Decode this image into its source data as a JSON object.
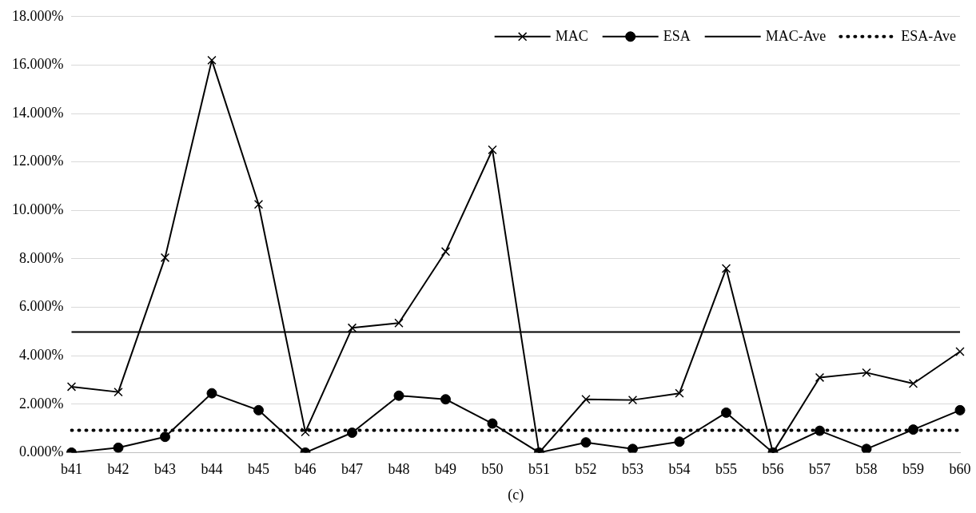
{
  "chart_data": {
    "type": "line",
    "categories": [
      "b41",
      "b42",
      "b43",
      "b44",
      "b45",
      "b46",
      "b47",
      "b48",
      "b49",
      "b50",
      "b51",
      "b52",
      "b53",
      "b54",
      "b55",
      "b56",
      "b57",
      "b58",
      "b59",
      "b60"
    ],
    "series": [
      {
        "name": "MAC",
        "color": "#000000",
        "marker": "cross",
        "line_style": "solid",
        "values": [
          2.72,
          2.5,
          8.05,
          16.2,
          10.25,
          0.85,
          5.15,
          5.35,
          8.3,
          12.5,
          0,
          2.2,
          2.17,
          2.45,
          7.6,
          0,
          3.1,
          3.3,
          2.85,
          4.17
        ]
      },
      {
        "name": "ESA",
        "color": "#000000",
        "marker": "circle",
        "line_style": "solid",
        "values": [
          0,
          0.2,
          0.65,
          2.45,
          1.75,
          0,
          0.82,
          2.35,
          2.2,
          1.2,
          0,
          0.42,
          0.15,
          0.45,
          1.65,
          0,
          0.9,
          0.15,
          0.95,
          1.75
        ]
      },
      {
        "name": "MAC-Ave",
        "color": "#000000",
        "marker": "none",
        "line_style": "solid",
        "values": [
          4.98,
          4.98,
          4.98,
          4.98,
          4.98,
          4.98,
          4.98,
          4.98,
          4.98,
          4.98,
          4.98,
          4.98,
          4.98,
          4.98,
          4.98,
          4.98,
          4.98,
          4.98,
          4.98,
          4.98
        ]
      },
      {
        "name": "ESA-Ave",
        "color": "#000000",
        "marker": "none",
        "line_style": "dotted",
        "values": [
          0.92,
          0.92,
          0.92,
          0.92,
          0.92,
          0.92,
          0.92,
          0.92,
          0.92,
          0.92,
          0.92,
          0.92,
          0.92,
          0.92,
          0.92,
          0.92,
          0.92,
          0.92,
          0.92,
          0.92
        ]
      }
    ],
    "ylim": [
      0,
      18
    ],
    "yticks": [
      {
        "value": 0,
        "label": "0.000%"
      },
      {
        "value": 2,
        "label": "2.000%"
      },
      {
        "value": 4,
        "label": "4.000%"
      },
      {
        "value": 6,
        "label": "6.000%"
      },
      {
        "value": 8,
        "label": "8.000%"
      },
      {
        "value": 10,
        "label": "10.000%"
      },
      {
        "value": 12,
        "label": "12.000%"
      },
      {
        "value": 14,
        "label": "14.000%"
      },
      {
        "value": 16,
        "label": "16.000%"
      },
      {
        "value": 18,
        "label": "18.000%"
      }
    ],
    "grid": "y",
    "legend": "top right",
    "annotations": [
      "(c)"
    ]
  }
}
